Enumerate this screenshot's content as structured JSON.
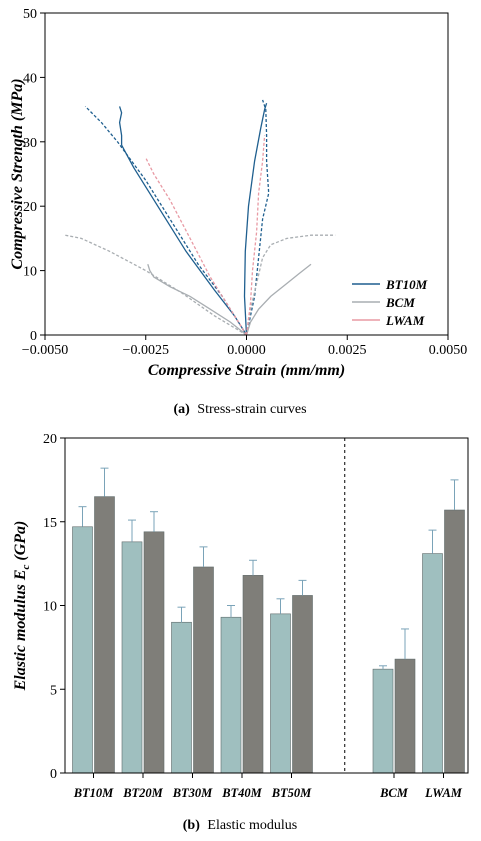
{
  "chart_data": [
    {
      "type": "line",
      "caption": {
        "letter": "(a)",
        "text": "Stress-strain curves"
      },
      "xlabel": "Compressive Strain (mm/mm)",
      "ylabel": "Compressive Strength (MPa)",
      "xlim": [
        -0.005,
        0.005
      ],
      "ylim": [
        0,
        50
      ],
      "xticks": [
        -0.005,
        -0.0025,
        0,
        0.0025,
        0.005
      ],
      "xtick_labels": [
        "−0.0050",
        "−0.0025",
        "0.0000",
        "0.0025",
        "0.0050"
      ],
      "yticks": [
        0,
        10,
        20,
        30,
        40,
        50
      ],
      "grid": false,
      "legend": {
        "position": "bottom-right",
        "entries": [
          "BT10M",
          "BCM",
          "LWAM"
        ]
      },
      "colors": {
        "BT10M": "#1f5f8f",
        "BCM": "#a9aeb2",
        "LWAM": "#e89aa4"
      },
      "series": [
        {
          "name": "BT10M",
          "style": "solid",
          "lateral": [
            [
              0,
              0
            ],
            [
              -0.0003,
              3
            ],
            [
              -0.0008,
              7
            ],
            [
              -0.0015,
              13
            ],
            [
              -0.0022,
              20
            ],
            [
              -0.0028,
              26
            ],
            [
              -0.0031,
              29.5
            ],
            [
              -0.0031,
              31
            ],
            [
              -0.00315,
              33
            ],
            [
              -0.0031,
              34.5
            ],
            [
              -0.00315,
              35.5
            ]
          ],
          "axial": [
            [
              0,
              0
            ],
            [
              -5e-05,
              6
            ],
            [
              -3e-05,
              13
            ],
            [
              5e-05,
              20
            ],
            [
              0.0002,
              27
            ],
            [
              0.00035,
              32
            ],
            [
              0.00045,
              35
            ],
            [
              0.0005,
              36
            ]
          ]
        },
        {
          "name": "BT10M",
          "style": "dashed",
          "lateral": [
            [
              0,
              0
            ],
            [
              -0.0006,
              6
            ],
            [
              -0.0012,
              11
            ],
            [
              -0.0018,
              17
            ],
            [
              -0.0025,
              24
            ],
            [
              -0.0032,
              30
            ],
            [
              -0.0036,
              33
            ],
            [
              -0.004,
              35.5
            ]
          ],
          "axial": [
            [
              0,
              0
            ],
            [
              0.0002,
              6
            ],
            [
              0.0003,
              12
            ],
            [
              0.0004,
              18
            ],
            [
              0.00055,
              22
            ],
            [
              0.0005,
              27
            ],
            [
              0.0005,
              31
            ],
            [
              0.00048,
              35
            ],
            [
              0.0004,
              36.5
            ]
          ]
        },
        {
          "name": "BCM",
          "style": "solid",
          "lateral": [
            [
              0,
              0
            ],
            [
              -0.0004,
              2
            ],
            [
              -0.0009,
              4
            ],
            [
              -0.0014,
              6
            ],
            [
              -0.0019,
              7.5
            ],
            [
              -0.0023,
              9
            ],
            [
              -0.0024,
              10
            ],
            [
              -0.00245,
              11
            ]
          ],
          "axial": [
            [
              0,
              0
            ],
            [
              0.0001,
              2
            ],
            [
              0.0003,
              4
            ],
            [
              0.0006,
              6
            ],
            [
              0.001,
              8
            ],
            [
              0.0013,
              9.5
            ],
            [
              0.0016,
              11
            ]
          ]
        },
        {
          "name": "BCM",
          "style": "dashed",
          "lateral": [
            [
              0,
              0
            ],
            [
              -0.0008,
              3
            ],
            [
              -0.0016,
              6.5
            ],
            [
              -0.0025,
              10
            ],
            [
              -0.0034,
              13
            ],
            [
              -0.0041,
              15
            ],
            [
              -0.0045,
              15.5
            ]
          ],
          "axial": [
            [
              0,
              0
            ],
            [
              0.0001,
              4
            ],
            [
              0.00025,
              8
            ],
            [
              0.0004,
              12
            ],
            [
              0.0006,
              14
            ],
            [
              0.001,
              15
            ],
            [
              0.0016,
              15.5
            ],
            [
              0.0022,
              15.5
            ]
          ]
        },
        {
          "name": "LWAM",
          "style": "dashed",
          "lateral": [
            [
              0,
              0
            ],
            [
              -0.0004,
              4
            ],
            [
              -0.0009,
              9
            ],
            [
              -0.0014,
              15
            ],
            [
              -0.0019,
              21
            ],
            [
              -0.0023,
              25
            ],
            [
              -0.0025,
              27.5
            ]
          ],
          "axial": [
            [
              0,
              0
            ],
            [
              0.0001,
              5
            ],
            [
              0.00015,
              10
            ],
            [
              0.00025,
              16
            ],
            [
              0.0003,
              22
            ],
            [
              0.0004,
              27
            ],
            [
              0.00045,
              31
            ]
          ]
        }
      ]
    },
    {
      "type": "bar",
      "caption": {
        "letter": "(b)",
        "text": "Elastic modulus"
      },
      "ylabel_main": "Elastic modulus E",
      "ylabel_sub": "c",
      "ylabel_unit": " (GPa)",
      "ylim": [
        0,
        20
      ],
      "yticks": [
        0,
        5,
        10,
        15,
        20
      ],
      "grid": false,
      "categories": [
        "BT10M",
        "BT20M",
        "BT30M",
        "BT40M",
        "BT50M",
        "BCM",
        "LWAM"
      ],
      "separator_after": "BT50M",
      "colors": {
        "bar1": "#9fbfbf",
        "bar2": "#7f7e79",
        "error": "#7aa3b8"
      },
      "series": [
        {
          "values": [
            14.7,
            13.8,
            9.0,
            9.3,
            9.5,
            6.2,
            13.1
          ],
          "errors": [
            1.2,
            1.3,
            0.9,
            0.7,
            0.9,
            0.2,
            1.4
          ]
        },
        {
          "values": [
            16.5,
            14.4,
            12.3,
            11.8,
            10.6,
            6.8,
            15.7
          ],
          "errors": [
            1.7,
            1.2,
            1.2,
            0.9,
            0.9,
            1.8,
            1.8
          ]
        }
      ]
    }
  ]
}
